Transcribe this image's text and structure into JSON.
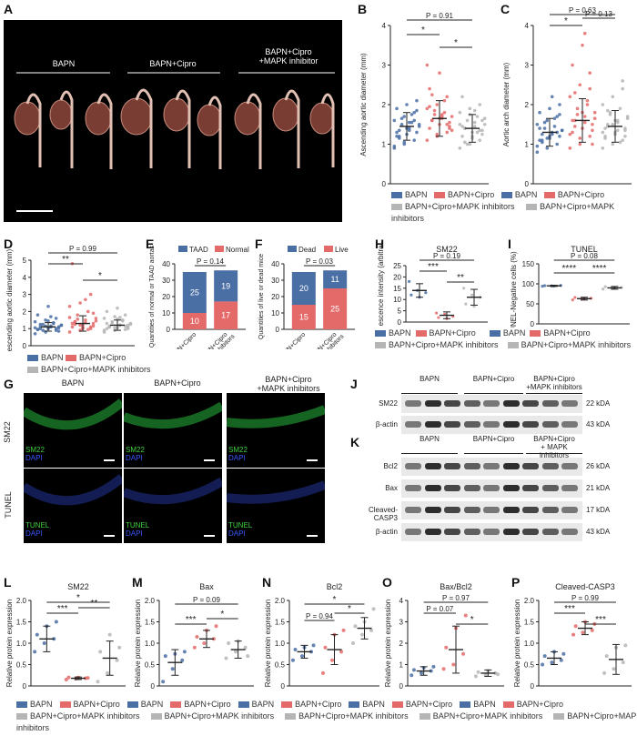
{
  "panels": {
    "A": {
      "label": "A",
      "groups": [
        "BAPN",
        "BAPN+Cipro",
        "BAPN+Cipro\n+MAPK inhibitor"
      ]
    },
    "B": {
      "label": "B",
      "ylabel": "Ascending aortic diameter (mm)",
      "stats": [
        "P = 0.91",
        "*",
        "*"
      ]
    },
    "C": {
      "label": "C",
      "ylabel": "Aortic arch diameter (mm)",
      "stats": [
        "P = 0.63",
        "*",
        "P = 0.13"
      ]
    },
    "D": {
      "label": "D",
      "ylabel": "Descending aortic diameter (mm)",
      "stats": [
        "P = 0.99",
        "**",
        "*"
      ]
    },
    "E": {
      "label": "E",
      "ylabel": "Quantities of normal or TAAD aortas",
      "stats": [
        "P = 0.14"
      ],
      "legend": [
        "TAAD",
        "Normal"
      ]
    },
    "F": {
      "label": "F",
      "ylabel": "Quantities of live or dead mice",
      "stats": [
        "P = 0.03"
      ],
      "legend": [
        "Dead",
        "Live"
      ]
    },
    "H": {
      "label": "H",
      "title": "SM22",
      "ylabel": "Green Fluorescence intensity (arbitrary unit)",
      "stats": [
        "P = 0.19",
        "***",
        "**"
      ]
    },
    "I": {
      "label": "I",
      "title": "TUNEL",
      "ylabel": "TUNEL-Negative cells (%)",
      "stats": [
        "P = 0.08",
        "****",
        "****"
      ]
    },
    "G": {
      "label": "G",
      "columns": [
        "BAPN",
        "BAPN+Cipro",
        "BAPN+Cipro\n+MAPK inhibitors"
      ],
      "rows": [
        "SM22",
        "TUNEL"
      ],
      "stain1": "SM22",
      "stain2": "TUNEL",
      "dapi": "DAPI"
    },
    "J": {
      "label": "J",
      "groups": [
        "BAPN",
        "BAPN+Cipro",
        "BAPN+Cipro\n+MAPK inhibitors"
      ],
      "rows": [
        {
          "name": "SM22",
          "kda": "22 kDA"
        },
        {
          "name": "β-actin",
          "kda": "43 kDA"
        }
      ]
    },
    "K": {
      "label": "K",
      "groups": [
        "BAPN",
        "BAPN+Cipro",
        "BAPN+Cipro\n+ MAPK inhibitors"
      ],
      "rows": [
        {
          "name": "Bcl2",
          "kda": "26 kDA"
        },
        {
          "name": "Bax",
          "kda": "21 kDA"
        },
        {
          "name": "Cleaved-CASP3",
          "kda": "17 kDA"
        },
        {
          "name": "β-actin",
          "kda": "43 kDA"
        }
      ]
    },
    "L": {
      "label": "L",
      "title": "SM22",
      "ylabel": "Relative protein expression",
      "stats": [
        "*",
        "***",
        "**"
      ]
    },
    "M": {
      "label": "M",
      "title": "Bax",
      "ylabel": "Relative protein expression",
      "stats": [
        "P = 0.09",
        "***",
        "*"
      ]
    },
    "N": {
      "label": "N",
      "title": "Bcl2",
      "ylabel": "Relative protein expression",
      "stats": [
        "*",
        "P = 0.94",
        "*"
      ]
    },
    "O": {
      "label": "O",
      "title": "Bax/Bcl2",
      "ylabel": "Relative protein expression",
      "stats": [
        "P = 0.97",
        "P = 0.07",
        "*"
      ]
    },
    "P": {
      "label": "P",
      "title": "Cleaved-CASP3",
      "ylabel": "Relative protein expression",
      "stats": [
        "P = 0.99",
        "***",
        "***"
      ]
    }
  },
  "legends": {
    "three": [
      "BAPN",
      "BAPN+Cipro",
      "BAPN+Cipro+MAPK inhibitors"
    ],
    "stack_x": [
      "BAPN+Cipro",
      "BAPN+Cipro\n+ MAPK inhibitors"
    ]
  },
  "colors": {
    "blue": "#4a6fa5",
    "red": "#e46a6a",
    "gray": "#b5b5b5",
    "dark": "#222222",
    "green": "#3fd13f"
  },
  "chart_data": [
    {
      "panel": "B",
      "type": "scatter",
      "categories": [
        "BAPN",
        "BAPN+Cipro",
        "BAPN+Cipro+MAPK inhibitors"
      ],
      "means": [
        1.45,
        1.65,
        1.4
      ],
      "sd": [
        0.35,
        0.45,
        0.35
      ],
      "yticks": [
        0,
        1,
        2,
        3,
        4
      ],
      "ylim": [
        0,
        4
      ],
      "points": [
        [
          0.9,
          1.0,
          1.1,
          1.2,
          1.25,
          1.3,
          1.35,
          1.4,
          1.45,
          1.5,
          1.55,
          1.6,
          1.7,
          1.8,
          1.9,
          2.0,
          2.1,
          1.15,
          1.35,
          1.5,
          1.65,
          1.75,
          0.95,
          1.05,
          1.6,
          1.3,
          1.4,
          1.85,
          1.2,
          1.55
        ],
        [
          1.1,
          1.2,
          1.3,
          1.4,
          1.5,
          1.55,
          1.6,
          1.65,
          1.7,
          1.75,
          1.8,
          1.9,
          2.0,
          2.2,
          2.4,
          2.8,
          1.45,
          1.6,
          1.7,
          1.35,
          1.85,
          2.1,
          3.0,
          1.25,
          1.5,
          1.95,
          1.65,
          1.4,
          2.25,
          1.75
        ],
        [
          0.9,
          1.0,
          1.1,
          1.2,
          1.3,
          1.35,
          1.4,
          1.45,
          1.5,
          1.6,
          1.7,
          1.8,
          1.9,
          2.0,
          2.2,
          1.15,
          1.25,
          1.4,
          1.55,
          1.65,
          1.0,
          1.3,
          1.5,
          1.75,
          1.35,
          1.45,
          1.2,
          1.6,
          1.05,
          1.85
        ]
      ]
    },
    {
      "panel": "C",
      "type": "scatter",
      "categories": [
        "BAPN",
        "BAPN+Cipro",
        "BAPN+Cipro+MAPK inhibitors"
      ],
      "means": [
        1.3,
        1.6,
        1.45
      ],
      "sd": [
        0.35,
        0.55,
        0.4
      ],
      "yticks": [
        0,
        1,
        2,
        3,
        4
      ],
      "ylim": [
        0,
        4
      ],
      "points": [
        [
          0.8,
          0.9,
          1.0,
          1.1,
          1.15,
          1.2,
          1.25,
          1.3,
          1.35,
          1.4,
          1.45,
          1.5,
          1.6,
          1.7,
          1.8,
          1.9,
          2.0,
          1.05,
          1.25,
          1.35,
          1.55,
          1.65,
          0.95,
          1.15,
          1.3,
          1.4,
          1.2,
          1.75,
          1.1,
          2.2
        ],
        [
          0.9,
          1.0,
          1.2,
          1.3,
          1.4,
          1.5,
          1.6,
          1.7,
          1.8,
          1.9,
          2.0,
          2.2,
          2.5,
          2.8,
          3.0,
          3.5,
          1.35,
          1.45,
          1.55,
          1.65,
          1.75,
          2.1,
          1.25,
          1.15,
          2.4,
          1.6,
          1.8,
          1.0,
          2.3,
          3.8
        ],
        [
          0.9,
          1.0,
          1.1,
          1.2,
          1.3,
          1.4,
          1.5,
          1.6,
          1.7,
          1.8,
          1.9,
          2.0,
          2.2,
          2.4,
          1.15,
          1.25,
          1.35,
          1.45,
          1.55,
          1.65,
          1.75,
          1.05,
          1.3,
          1.5,
          2.6,
          1.4,
          1.6,
          1.2,
          1.85,
          1.35
        ]
      ]
    },
    {
      "panel": "D",
      "type": "scatter",
      "categories": [
        "BAPN",
        "BAPN+Cipro",
        "BAPN+Cipro+MAPK inhibitors"
      ],
      "means": [
        1.1,
        1.3,
        1.2
      ],
      "sd": [
        0.25,
        0.45,
        0.3
      ],
      "yticks": [
        0,
        1,
        2,
        3,
        4,
        5
      ],
      "ylim": [
        0,
        5
      ],
      "points": [
        [
          0.7,
          0.8,
          0.9,
          0.95,
          1.0,
          1.05,
          1.1,
          1.15,
          1.2,
          1.25,
          1.3,
          1.4,
          1.5,
          1.6,
          1.8,
          2.3,
          0.85,
          1.0,
          1.1,
          1.2,
          0.9,
          1.35,
          1.05,
          1.15,
          1.0,
          0.95,
          1.45,
          1.1,
          1.25,
          1.7
        ],
        [
          0.8,
          0.9,
          1.0,
          1.1,
          1.2,
          1.3,
          1.4,
          1.5,
          1.6,
          1.8,
          2.0,
          2.3,
          2.5,
          3.0,
          4.8,
          1.05,
          1.15,
          1.25,
          1.35,
          1.45,
          1.55,
          0.95,
          1.65,
          1.2,
          1.1,
          1.3,
          1.0,
          1.9,
          1.4,
          2.7
        ],
        [
          0.8,
          0.9,
          0.95,
          1.0,
          1.05,
          1.1,
          1.15,
          1.2,
          1.3,
          1.4,
          1.5,
          1.6,
          1.7,
          1.8,
          2.0,
          2.2,
          1.0,
          1.1,
          1.2,
          1.25,
          1.35,
          1.45,
          0.9,
          1.05,
          1.15,
          1.3,
          1.55,
          1.2,
          1.1,
          1.65
        ]
      ]
    },
    {
      "panel": "E",
      "type": "bar",
      "stacked": true,
      "categories": [
        "BAPN+Cipro",
        "BAPN+Cipro\n+ MAPK inhibitors"
      ],
      "series": [
        {
          "name": "Normal",
          "values": [
            10,
            17
          ]
        },
        {
          "name": "TAAD",
          "values": [
            25,
            19
          ]
        }
      ],
      "yticks": [
        0,
        10,
        20,
        30,
        40
      ],
      "ylim": [
        0,
        40
      ]
    },
    {
      "panel": "F",
      "type": "bar",
      "stacked": true,
      "categories": [
        "BAPN+Cipro",
        "BAPN+Cipro\n+ MAPK inhibitors"
      ],
      "series": [
        {
          "name": "Live",
          "values": [
            15,
            25
          ]
        },
        {
          "name": "Dead",
          "values": [
            20,
            11
          ]
        }
      ],
      "yticks": [
        0,
        10,
        20,
        30,
        40
      ],
      "ylim": [
        0,
        40
      ]
    },
    {
      "panel": "H",
      "type": "scatter",
      "categories": [
        "BAPN",
        "BAPN+Cipro",
        "BAPN+Cipro+MAPK inhibitors"
      ],
      "means": [
        14,
        3,
        11
      ],
      "sd": [
        3,
        1.5,
        3.5
      ],
      "yticks": [
        0,
        5,
        10,
        15,
        20,
        25
      ],
      "ylim": [
        0,
        25
      ],
      "points": [
        [
          18,
          14,
          13,
          12,
          11
        ],
        [
          4,
          3.5,
          2.5,
          2,
          1.5
        ],
        [
          15,
          12,
          11,
          8,
          7
        ]
      ]
    },
    {
      "panel": "I",
      "type": "scatter",
      "categories": [
        "BAPN",
        "BAPN+Cipro",
        "BAPN+Cipro+MAPK inhibitors"
      ],
      "means": [
        95,
        63,
        90
      ],
      "sd": [
        1.5,
        3.5,
        3.5
      ],
      "yticks": [
        0,
        50,
        100,
        150
      ],
      "ylim": [
        0,
        150
      ],
      "points": [
        [
          94,
          95,
          96,
          95.5,
          94.5
        ],
        [
          60,
          62,
          64,
          66,
          63
        ],
        [
          87,
          89,
          91,
          93,
          90
        ]
      ]
    },
    {
      "panel": "L",
      "type": "scatter",
      "categories": [
        "BAPN",
        "BAPN+Cipro",
        "BAPN+Cipro+MAPK inhibitors"
      ],
      "means": [
        1.1,
        0.18,
        0.65
      ],
      "sd": [
        0.3,
        0.03,
        0.4
      ],
      "yticks": [
        0,
        0.5,
        1.0,
        1.5,
        2.0
      ],
      "ylim": [
        0,
        2
      ],
      "points": [
        [
          0.8,
          1.0,
          1.1,
          1.2,
          1.4,
          1.5
        ],
        [
          0.15,
          0.17,
          0.18,
          0.2,
          0.2,
          0.19
        ],
        [
          0.1,
          0.3,
          0.6,
          0.8,
          1.2,
          0.9
        ]
      ]
    },
    {
      "panel": "M",
      "type": "scatter",
      "categories": [
        "BAPN",
        "BAPN+Cipro",
        "BAPN+Cipro+MAPK inhibitors"
      ],
      "means": [
        0.55,
        1.1,
        0.85
      ],
      "sd": [
        0.3,
        0.2,
        0.2
      ],
      "yticks": [
        0,
        0.5,
        1.0,
        1.5,
        2.0
      ],
      "ylim": [
        0,
        2
      ],
      "points": [
        [
          0.1,
          0.4,
          0.6,
          0.7,
          0.75,
          0.8
        ],
        [
          0.9,
          1.0,
          1.1,
          1.15,
          1.3,
          1.4
        ],
        [
          0.65,
          0.8,
          0.9,
          1.0,
          1.05,
          0.7
        ]
      ]
    },
    {
      "panel": "N",
      "type": "scatter",
      "categories": [
        "BAPN",
        "BAPN+Cipro",
        "BAPN+Cipro+MAPK inhibitors"
      ],
      "means": [
        0.8,
        0.85,
        1.35
      ],
      "sd": [
        0.15,
        0.35,
        0.25
      ],
      "yticks": [
        0,
        0.5,
        1.0,
        1.5,
        2.0
      ],
      "ylim": [
        0,
        2
      ],
      "points": [
        [
          0.6,
          0.7,
          0.8,
          0.85,
          0.9,
          0.95
        ],
        [
          0.3,
          0.6,
          0.8,
          0.9,
          1.2,
          1.3
        ],
        [
          1.0,
          1.2,
          1.3,
          1.4,
          1.5,
          1.8
        ]
      ]
    },
    {
      "panel": "O",
      "type": "scatter",
      "categories": [
        "BAPN",
        "BAPN+Cipro",
        "BAPN+Cipro+MAPK inhibitors"
      ],
      "means": [
        0.7,
        1.7,
        0.6
      ],
      "sd": [
        0.2,
        1.1,
        0.15
      ],
      "yticks": [
        0,
        1,
        2,
        3,
        4
      ],
      "ylim": [
        0,
        4
      ],
      "points": [
        [
          0.5,
          0.6,
          0.7,
          0.75,
          0.85,
          0.9
        ],
        [
          0.8,
          1.0,
          1.5,
          1.8,
          2.7,
          3.3
        ],
        [
          0.45,
          0.5,
          0.6,
          0.65,
          0.7,
          0.55
        ]
      ]
    },
    {
      "panel": "P",
      "type": "scatter",
      "categories": [
        "BAPN",
        "BAPN+Cipro",
        "BAPN+Cipro+MAPK inhibitors"
      ],
      "means": [
        0.65,
        1.35,
        0.62
      ],
      "sd": [
        0.15,
        0.15,
        0.35
      ],
      "yticks": [
        0,
        0.5,
        1.0,
        1.5,
        2.0
      ],
      "ylim": [
        0,
        2
      ],
      "points": [
        [
          0.5,
          0.55,
          0.6,
          0.7,
          0.8,
          0.75
        ],
        [
          1.2,
          1.25,
          1.3,
          1.4,
          1.5,
          1.45
        ],
        [
          0.3,
          0.4,
          0.55,
          0.7,
          0.9,
          0.95
        ]
      ]
    }
  ]
}
